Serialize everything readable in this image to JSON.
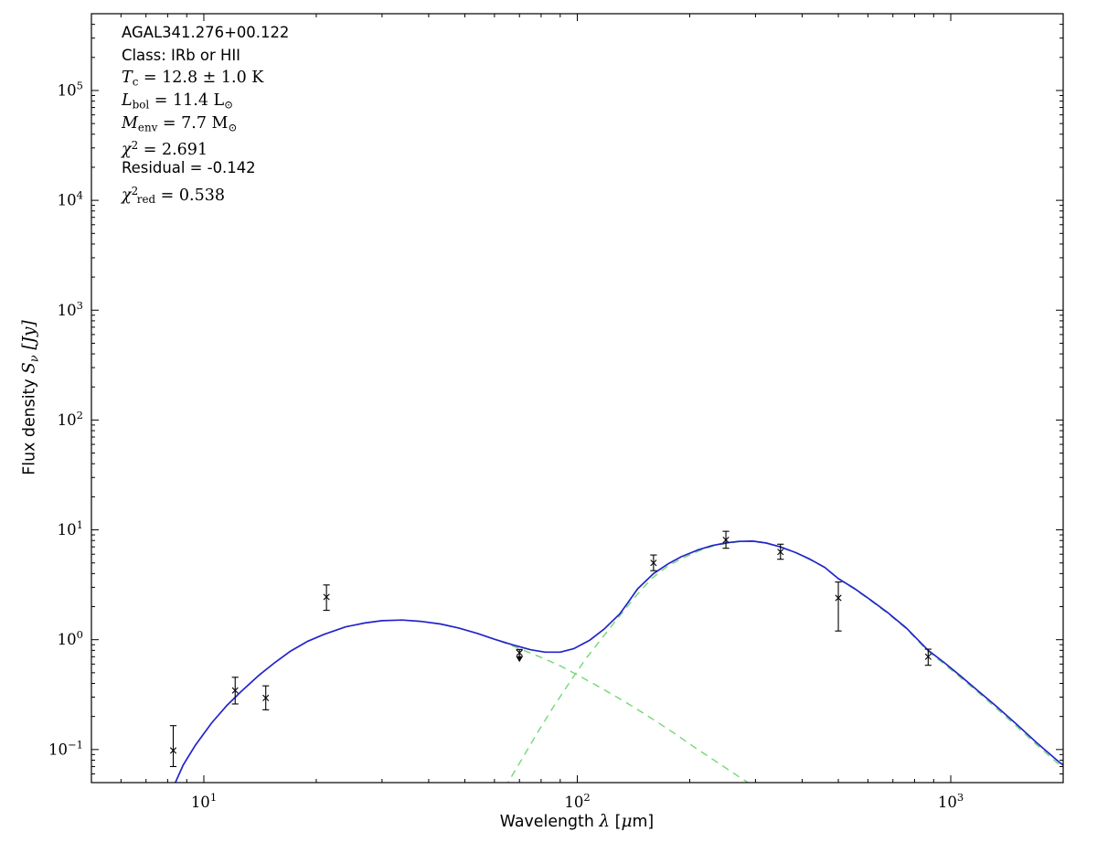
{
  "figure": {
    "background": "#ffffff",
    "frame_color": "#000000"
  },
  "chart_data": {
    "type": "line",
    "title": "",
    "xlabel": "Wavelength λ [μm]",
    "ylabel": "Flux density Sν [Jy]",
    "xscale": "log",
    "yscale": "log",
    "xlim": [
      5,
      2000
    ],
    "ylim": [
      0.05,
      500000
    ],
    "x_major_ticks": [
      10,
      100,
      1000
    ],
    "y_major_ticks": [
      0.1,
      1,
      10,
      100,
      1000,
      10000,
      100000
    ],
    "grid": false,
    "legend": "none",
    "colors": {
      "total": "#2323cd",
      "components": "#74d874",
      "data": "#000000"
    },
    "xlabel_segments": [
      {
        "t": "Wavelength ",
        "f": "sans"
      },
      {
        "t": "λ",
        "f": "it"
      },
      {
        "t": " [",
        "f": "sans"
      },
      {
        "t": "μ",
        "f": "it"
      },
      {
        "t": "m]",
        "f": "sans"
      }
    ],
    "ylabel_segments": [
      {
        "t": "Flux density ",
        "f": "sans"
      },
      {
        "t": "S",
        "f": "it"
      },
      {
        "t": "ν",
        "f": "subit"
      },
      {
        "t": " [",
        "f": "it"
      },
      {
        "t": "Jy",
        "f": "it"
      },
      {
        "t": "]",
        "f": "it"
      }
    ],
    "annotation": {
      "source_name": "AGAL341.276+00.122",
      "class": "IRb or HII",
      "T_c": "12.8 ± 1.0 K",
      "L_bol": "11.4 L⊙",
      "M_env": "7.7 M⊙",
      "chi2": 2.691,
      "residual": -0.142,
      "chi2_red": 0.538,
      "lines": [
        {
          "text": "AGAL341.276+00.122",
          "segments": [
            {
              "t": "AGAL341.276+00.122",
              "f": "sans"
            }
          ]
        },
        {
          "text": "Class: IRb or HII",
          "segments": [
            {
              "t": "Class: IRb or HII",
              "f": "sans"
            }
          ]
        },
        {
          "text": "T_c = 12.8 ± 1.0 K",
          "segments": [
            {
              "t": "T",
              "f": "it"
            },
            {
              "t": "c",
              "f": "sub"
            },
            {
              "t": " = 12.8 ± 1.0 K",
              "f": "rm"
            }
          ]
        },
        {
          "text": "L_bol = 11.4 L⊙",
          "segments": [
            {
              "t": "L",
              "f": "it"
            },
            {
              "t": "bol",
              "f": "sub"
            },
            {
              "t": " = 11.4 L",
              "f": "rm"
            },
            {
              "t": "⊙",
              "f": "sub"
            }
          ]
        },
        {
          "text": "M_env = 7.7 M⊙",
          "segments": [
            {
              "t": "M",
              "f": "it"
            },
            {
              "t": "env",
              "f": "sub"
            },
            {
              "t": " = 7.7 M",
              "f": "rm"
            },
            {
              "t": "⊙",
              "f": "sub"
            }
          ]
        },
        {
          "text": "χ2 = 2.691",
          "segments": [
            {
              "t": "χ",
              "f": "it"
            },
            {
              "t": "2",
              "f": "sup"
            },
            {
              "t": " = 2.691",
              "f": "rm"
            }
          ]
        },
        {
          "text": "Residual = -0.142",
          "segments": [
            {
              "t": "Residual = -0.142",
              "f": "sans"
            }
          ]
        },
        {
          "text": "χ2_red = 0.538",
          "segments": [
            {
              "t": "χ",
              "f": "it"
            },
            {
              "t": "2",
              "f": "sup"
            },
            {
              "t": "red",
              "f": "sub"
            },
            {
              "t": " = 0.538",
              "f": "rm"
            }
          ]
        }
      ]
    },
    "series": [
      {
        "name": "cold-component-greybody",
        "color_key": "components",
        "style": "dashed",
        "points": [
          [
            64,
            0.045
          ],
          [
            70,
            0.075
          ],
          [
            78,
            0.14
          ],
          [
            86,
            0.24
          ],
          [
            95,
            0.4
          ],
          [
            105,
            0.66
          ],
          [
            115,
            0.98
          ],
          [
            128,
            1.55
          ],
          [
            142,
            2.4
          ],
          [
            158,
            3.6
          ],
          [
            175,
            4.7
          ],
          [
            192,
            5.55
          ],
          [
            212,
            6.45
          ],
          [
            232,
            7.15
          ],
          [
            255,
            7.6
          ],
          [
            275,
            7.82
          ],
          [
            295,
            7.87
          ],
          [
            320,
            7.57
          ],
          [
            350,
            6.97
          ],
          [
            385,
            6.17
          ],
          [
            420,
            5.37
          ],
          [
            460,
            4.52
          ],
          [
            500,
            3.57
          ],
          [
            550,
            2.92
          ],
          [
            610,
            2.27
          ],
          [
            680,
            1.72
          ],
          [
            760,
            1.26
          ],
          [
            870,
            0.78
          ],
          [
            960,
            0.6
          ],
          [
            1060,
            0.455
          ],
          [
            1180,
            0.335
          ],
          [
            1320,
            0.24
          ],
          [
            1500,
            0.163
          ],
          [
            1700,
            0.11
          ],
          [
            1950,
            0.073
          ],
          [
            2150,
            0.057
          ]
        ]
      },
      {
        "name": "warm-component",
        "color_key": "components",
        "style": "dashed",
        "points": [
          [
            62,
            0.97
          ],
          [
            70,
            0.83
          ],
          [
            80,
            0.69
          ],
          [
            90,
            0.578
          ],
          [
            100,
            0.478
          ],
          [
            112,
            0.388
          ],
          [
            126,
            0.308
          ],
          [
            142,
            0.242
          ],
          [
            160,
            0.187
          ],
          [
            180,
            0.144
          ],
          [
            205,
            0.106
          ],
          [
            235,
            0.078
          ],
          [
            270,
            0.057
          ],
          [
            310,
            0.042
          ],
          [
            345,
            0.033
          ]
        ]
      },
      {
        "name": "total-model",
        "color_key": "total",
        "style": "solid",
        "points": [
          [
            8.2,
            0.042
          ],
          [
            8.8,
            0.072
          ],
          [
            9.5,
            0.11
          ],
          [
            10.5,
            0.175
          ],
          [
            11.5,
            0.25
          ],
          [
            12.5,
            0.33
          ],
          [
            14,
            0.47
          ],
          [
            15.5,
            0.62
          ],
          [
            17,
            0.78
          ],
          [
            19,
            0.97
          ],
          [
            21,
            1.12
          ],
          [
            24,
            1.31
          ],
          [
            27,
            1.42
          ],
          [
            30,
            1.49
          ],
          [
            34,
            1.51
          ],
          [
            38,
            1.47
          ],
          [
            43,
            1.39
          ],
          [
            48,
            1.28
          ],
          [
            54,
            1.14
          ],
          [
            60,
            1.01
          ],
          [
            67,
            0.9
          ],
          [
            75,
            0.81
          ],
          [
            82,
            0.77
          ],
          [
            90,
            0.77
          ],
          [
            98,
            0.83
          ],
          [
            108,
            0.99
          ],
          [
            118,
            1.25
          ],
          [
            130,
            1.72
          ],
          [
            137,
            2.2
          ],
          [
            145,
            2.9
          ],
          [
            160,
            4.0
          ],
          [
            175,
            4.9
          ],
          [
            190,
            5.7
          ],
          [
            210,
            6.55
          ],
          [
            230,
            7.2
          ],
          [
            250,
            7.6
          ],
          [
            270,
            7.85
          ],
          [
            295,
            7.9
          ],
          [
            320,
            7.6
          ],
          [
            350,
            7.0
          ],
          [
            385,
            6.2
          ],
          [
            420,
            5.4
          ],
          [
            460,
            4.55
          ],
          [
            500,
            3.6
          ],
          [
            550,
            2.95
          ],
          [
            610,
            2.3
          ],
          [
            680,
            1.75
          ],
          [
            760,
            1.28
          ],
          [
            870,
            0.8
          ],
          [
            960,
            0.62
          ],
          [
            1060,
            0.47
          ],
          [
            1180,
            0.345
          ],
          [
            1320,
            0.25
          ],
          [
            1500,
            0.17
          ],
          [
            1700,
            0.115
          ],
          [
            1950,
            0.077
          ],
          [
            2150,
            0.06
          ]
        ]
      }
    ],
    "data_points": [
      {
        "wavelength_um": 8.28,
        "flux_jy": 0.098,
        "err_lo": 0.07,
        "err_hi": 0.165
      },
      {
        "wavelength_um": 12.13,
        "flux_jy": 0.345,
        "err_lo": 0.26,
        "err_hi": 0.455
      },
      {
        "wavelength_um": 14.65,
        "flux_jy": 0.295,
        "err_lo": 0.23,
        "err_hi": 0.38
      },
      {
        "wavelength_um": 21.3,
        "flux_jy": 2.45,
        "err_lo": 1.85,
        "err_hi": 3.15
      },
      {
        "wavelength_um": 70,
        "flux_jy": 0.76,
        "err_lo": 0.7,
        "err_hi": 0.815,
        "limit": "upper"
      },
      {
        "wavelength_um": 160,
        "flux_jy": 5.0,
        "err_lo": 4.25,
        "err_hi": 5.9
      },
      {
        "wavelength_um": 250,
        "flux_jy": 8.1,
        "err_lo": 6.8,
        "err_hi": 9.7
      },
      {
        "wavelength_um": 350,
        "flux_jy": 6.3,
        "err_lo": 5.4,
        "err_hi": 7.4
      },
      {
        "wavelength_um": 500,
        "flux_jy": 2.4,
        "err_lo": 1.2,
        "err_hi": 3.35
      },
      {
        "wavelength_um": 870,
        "flux_jy": 0.7,
        "err_lo": 0.585,
        "err_hi": 0.82
      }
    ]
  }
}
